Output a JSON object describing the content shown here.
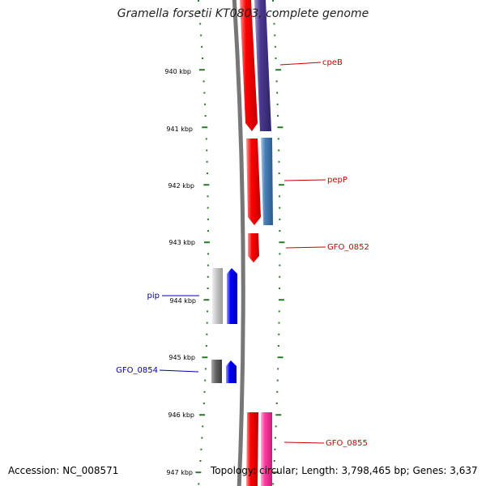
{
  "title": "Gramella forsetii KT0803, complete genome",
  "footer": {
    "accession": "Accession: NC_008571",
    "topology": "Topology: circular; Length: 3,798,465 bp; Genes: 3,637"
  },
  "scale": {
    "ticks": [
      "940 kbp",
      "941 kbp",
      "942 kbp",
      "943 kbp",
      "944 kbp",
      "945 kbp",
      "946 kbp",
      "947 kbp"
    ]
  },
  "colors": {
    "backbone": "#777777",
    "forward_cds": "#ff0000",
    "reverse_cds": "#0000ff",
    "purple": "#4a3a90",
    "steelblue": "#4a80b8",
    "magenta": "#ff3aa0",
    "lightgray": "#c8c8c8",
    "darkgray": "#666666",
    "tick_green": "#2a7a2a"
  },
  "genes": [
    {
      "name": "cpeB",
      "color": "#cc0000"
    },
    {
      "name": "pepP",
      "color": "#cc0000"
    },
    {
      "name": "GFO_0852",
      "color": "#cc0000"
    },
    {
      "name": "pip",
      "color": "#0000aa"
    },
    {
      "name": "GFO_0854",
      "color": "#0000aa"
    },
    {
      "name": "GFO_0855",
      "color": "#cc0000"
    }
  ]
}
